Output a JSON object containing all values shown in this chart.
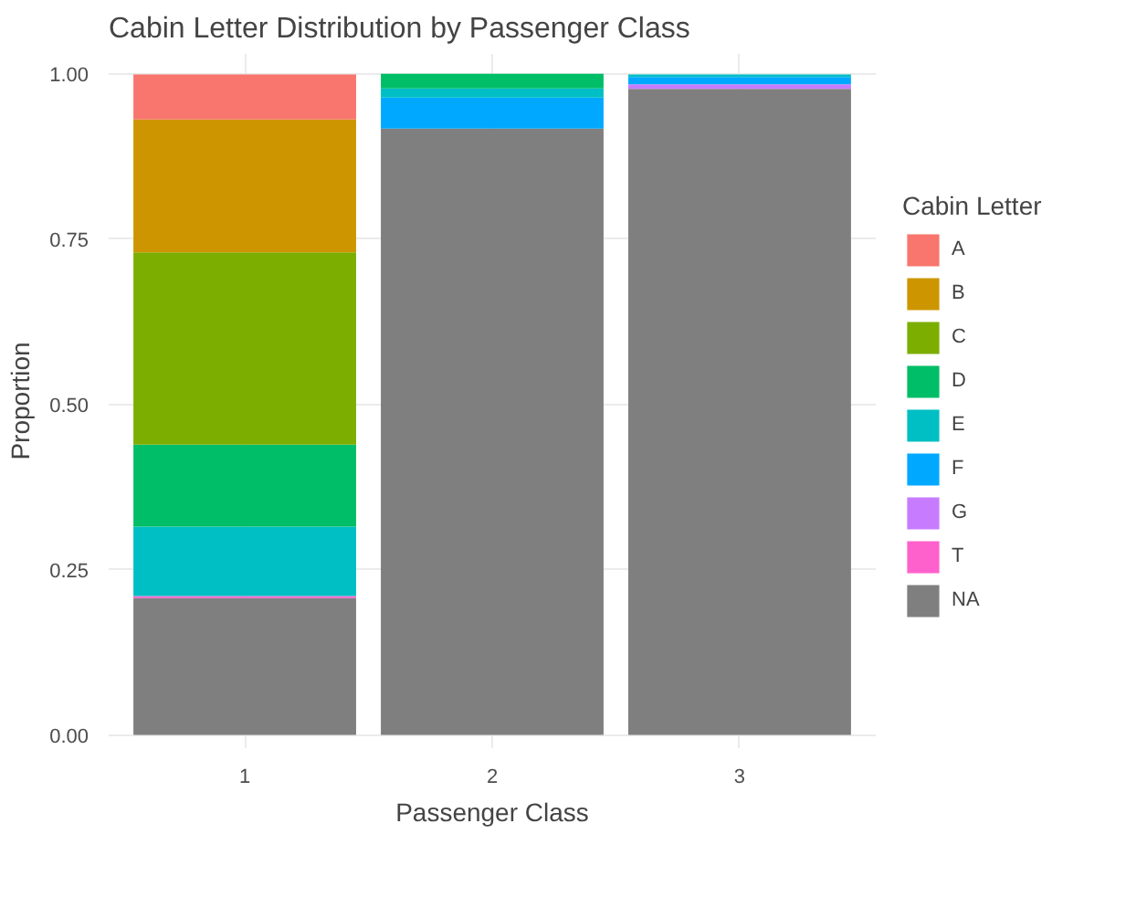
{
  "chart_data": {
    "type": "bar",
    "title": "Cabin Letter Distribution by Passenger Class",
    "xlabel": "Passenger Class",
    "ylabel": "Proportion",
    "legend_title": "Cabin Letter",
    "categories": [
      "1",
      "2",
      "3"
    ],
    "stacked": true,
    "ylim": [
      -0.02,
      1.03
    ],
    "yticks": [
      {
        "value": 0,
        "label": "0.00"
      },
      {
        "value": 0.25,
        "label": "0.25"
      },
      {
        "value": 0.5,
        "label": "0.50"
      },
      {
        "value": 0.75,
        "label": "0.75"
      },
      {
        "value": 1,
        "label": "1.00"
      }
    ],
    "grid": true,
    "legend": "right",
    "series": [
      {
        "name": "NA",
        "color": "#7f7f7f",
        "values": [
          0.207,
          0.917,
          0.977
        ]
      },
      {
        "name": "T",
        "color": "#ff61cc",
        "values": [
          0.003,
          0,
          0
        ]
      },
      {
        "name": "G",
        "color": "#c77cff",
        "values": [
          0,
          0,
          0.007
        ]
      },
      {
        "name": "F",
        "color": "#00a9ff",
        "values": [
          0,
          0.047,
          0.011
        ]
      },
      {
        "name": "E",
        "color": "#00bfc4",
        "values": [
          0.105,
          0.014,
          0.004
        ]
      },
      {
        "name": "D",
        "color": "#00be67",
        "values": [
          0.124,
          0.022,
          0
        ]
      },
      {
        "name": "C",
        "color": "#7cae00",
        "values": [
          0.291,
          0,
          0
        ]
      },
      {
        "name": "B",
        "color": "#cd9600",
        "values": [
          0.201,
          0,
          0
        ]
      },
      {
        "name": "A",
        "color": "#f8766d",
        "values": [
          0.068,
          0,
          0
        ]
      }
    ]
  }
}
